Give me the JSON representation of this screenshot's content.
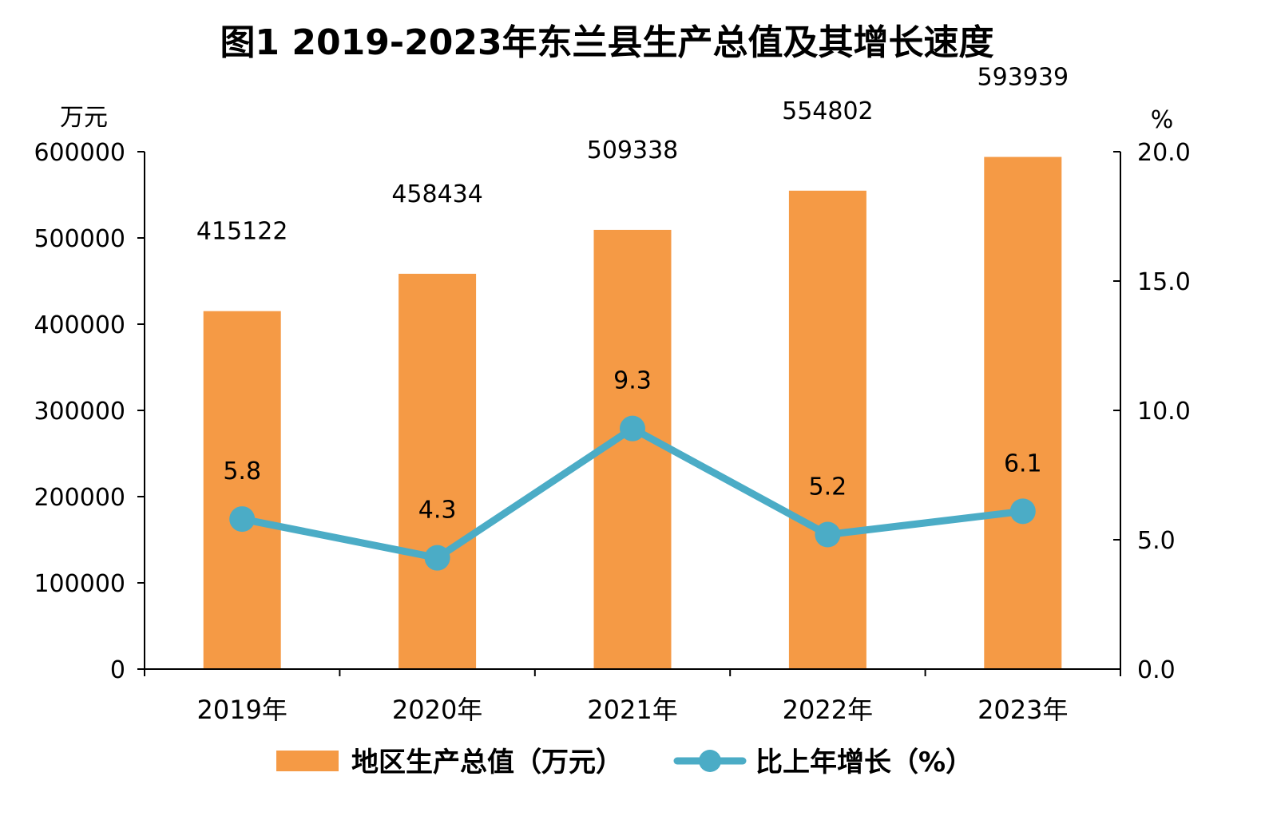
{
  "chart_data": {
    "type": "bar",
    "title": "图1  2019-2023年东兰县生产总值及其增长速度",
    "categories": [
      "2019年",
      "2020年",
      "2021年",
      "2022年",
      "2023年"
    ],
    "left_axis": {
      "unit": "万元",
      "ylim": [
        0,
        600000
      ],
      "ticks": [
        "0",
        "100000",
        "200000",
        "300000",
        "400000",
        "500000",
        "600000"
      ]
    },
    "right_axis": {
      "unit": "%",
      "ylim": [
        0,
        20
      ],
      "ticks": [
        "0.0",
        "5.0",
        "10.0",
        "15.0",
        "20.0"
      ]
    },
    "series": [
      {
        "name": "地区生产总值（万元）",
        "type": "bar",
        "axis": "left",
        "color": "#F59A45",
        "values": [
          415122,
          458434,
          509338,
          554802,
          593939
        ],
        "labels": [
          "415122",
          "458434",
          "509338",
          "554802",
          "593939"
        ]
      },
      {
        "name": "比上年增长（%）",
        "type": "line",
        "axis": "right",
        "color": "#4BACC6",
        "values": [
          5.8,
          4.3,
          9.3,
          5.2,
          6.1
        ],
        "labels": [
          "5.8",
          "4.3",
          "9.3",
          "5.2",
          "6.1"
        ]
      }
    ],
    "grid": false,
    "legend_position": "bottom"
  }
}
